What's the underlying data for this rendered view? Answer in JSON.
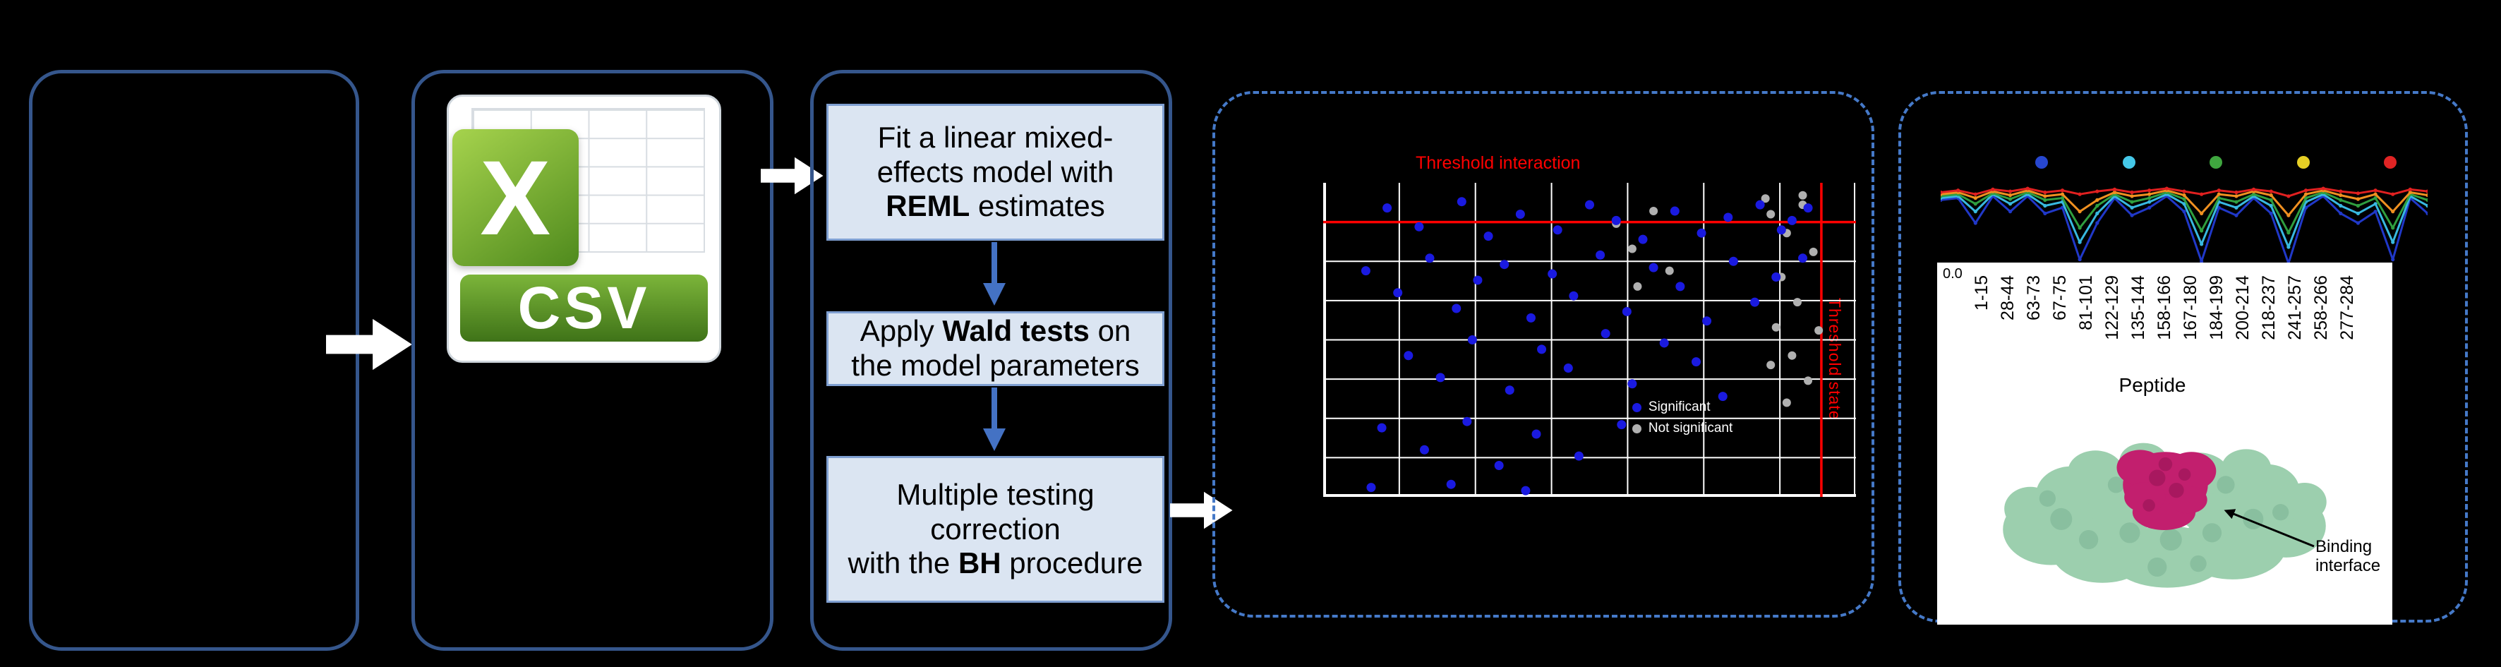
{
  "colors": {
    "background": "#000000",
    "panel_border": "#35568c",
    "dashed_border": "#4579c8",
    "arrow_white": "#ffffff",
    "flow_arrow_blue": "#4472c4",
    "flow_box_fill": "#dbe5f2"
  },
  "csv": {
    "banner": "CSV",
    "logo_letter": "X"
  },
  "flow": {
    "step1": {
      "l1": "Fit a linear mixed-",
      "l2": "effects model with",
      "l3_bold": "REML",
      "l3_rest": " estimates"
    },
    "step2": {
      "l1_pre": "Apply ",
      "l1_bold": "Wald tests",
      "l1_post": " on",
      "l2": "the model parameters"
    },
    "step3": {
      "l1": "Multiple testing",
      "l2": "correction",
      "l3_pre": "with the ",
      "l3_bold": "BH",
      "l3_post": " procedure"
    }
  },
  "scatter": {
    "title": "Threshold interaction",
    "side_label": "Threshold state",
    "threshold_color": "#ff0000",
    "threshold_h_pct": 12.5,
    "threshold_v_pct": 93.5,
    "grid": {
      "cols": 7,
      "rows": 8
    },
    "legend": [
      {
        "label": "Significant",
        "color": "#1a1ae0"
      },
      {
        "label": "Not significant",
        "color": "#b0b0b0"
      }
    ],
    "points": {
      "blue_color": "#1a1ae0",
      "gray_color": "#b0b0b0",
      "blue": [
        [
          12,
          8
        ],
        [
          18,
          14
        ],
        [
          26,
          6
        ],
        [
          31,
          17
        ],
        [
          37,
          10
        ],
        [
          44,
          15
        ],
        [
          50,
          7
        ],
        [
          55,
          12
        ],
        [
          60,
          18
        ],
        [
          66,
          9
        ],
        [
          71,
          16
        ],
        [
          76,
          11
        ],
        [
          82,
          7
        ],
        [
          86,
          15
        ],
        [
          8,
          28
        ],
        [
          14,
          35
        ],
        [
          20,
          24
        ],
        [
          25,
          40
        ],
        [
          29,
          31
        ],
        [
          34,
          26
        ],
        [
          39,
          43
        ],
        [
          43,
          29
        ],
        [
          47,
          36
        ],
        [
          52,
          23
        ],
        [
          57,
          41
        ],
        [
          62,
          27
        ],
        [
          67,
          33
        ],
        [
          72,
          44
        ],
        [
          77,
          25
        ],
        [
          81,
          38
        ],
        [
          85,
          30
        ],
        [
          16,
          55
        ],
        [
          22,
          62
        ],
        [
          28,
          50
        ],
        [
          35,
          66
        ],
        [
          41,
          53
        ],
        [
          46,
          59
        ],
        [
          53,
          48
        ],
        [
          58,
          64
        ],
        [
          64,
          51
        ],
        [
          70,
          57
        ],
        [
          75,
          68
        ],
        [
          11,
          78
        ],
        [
          19,
          85
        ],
        [
          27,
          76
        ],
        [
          33,
          90
        ],
        [
          40,
          80
        ],
        [
          48,
          87
        ],
        [
          56,
          77
        ],
        [
          9,
          97
        ],
        [
          24,
          96
        ],
        [
          38,
          98
        ],
        [
          88,
          12
        ],
        [
          90,
          24
        ],
        [
          91,
          8
        ]
      ],
      "gray": [
        [
          84,
          10
        ],
        [
          87,
          16
        ],
        [
          90,
          7
        ],
        [
          86,
          30
        ],
        [
          89,
          38
        ],
        [
          92,
          22
        ],
        [
          85,
          46
        ],
        [
          88,
          55
        ],
        [
          91,
          63
        ],
        [
          87,
          70
        ],
        [
          93,
          47
        ],
        [
          84,
          58
        ],
        [
          55,
          13
        ],
        [
          58,
          21
        ],
        [
          62,
          9
        ],
        [
          65,
          28
        ],
        [
          59,
          33
        ],
        [
          83,
          5
        ],
        [
          90,
          4
        ]
      ]
    }
  },
  "uptake": {
    "legend_colors": [
      "#2747d0",
      "#45c8e8",
      "#3fa63f",
      "#e6cf25",
      "#e02424"
    ],
    "series": [
      {
        "color": "#2038c8",
        "values": [
          0.74,
          0.76,
          0.5,
          0.78,
          0.62,
          0.78,
          0.6,
          0.66,
          0.12,
          0.5,
          0.76,
          0.58,
          0.66,
          0.78,
          0.62,
          0.1,
          0.66,
          0.58,
          0.76,
          0.6,
          0.08,
          0.66,
          0.78,
          0.6,
          0.5,
          0.62,
          0.12,
          0.76,
          0.6
        ]
      },
      {
        "color": "#38b8e0",
        "values": [
          0.76,
          0.78,
          0.62,
          0.8,
          0.7,
          0.8,
          0.68,
          0.72,
          0.3,
          0.6,
          0.78,
          0.66,
          0.72,
          0.8,
          0.7,
          0.28,
          0.72,
          0.66,
          0.78,
          0.68,
          0.25,
          0.72,
          0.8,
          0.68,
          0.6,
          0.7,
          0.3,
          0.78,
          0.68
        ]
      },
      {
        "color": "#2f9e3f",
        "values": [
          0.78,
          0.8,
          0.7,
          0.81,
          0.75,
          0.82,
          0.74,
          0.76,
          0.45,
          0.68,
          0.8,
          0.72,
          0.76,
          0.82,
          0.75,
          0.42,
          0.76,
          0.72,
          0.8,
          0.74,
          0.4,
          0.76,
          0.82,
          0.74,
          0.68,
          0.76,
          0.45,
          0.8,
          0.74
        ]
      },
      {
        "color": "#f09020",
        "values": [
          0.8,
          0.82,
          0.76,
          0.83,
          0.79,
          0.84,
          0.78,
          0.8,
          0.62,
          0.74,
          0.82,
          0.78,
          0.8,
          0.84,
          0.79,
          0.6,
          0.8,
          0.78,
          0.83,
          0.79,
          0.58,
          0.8,
          0.84,
          0.79,
          0.75,
          0.8,
          0.62,
          0.82,
          0.79
        ]
      },
      {
        "color": "#e02020",
        "values": [
          0.82,
          0.84,
          0.8,
          0.85,
          0.83,
          0.86,
          0.82,
          0.84,
          0.8,
          0.83,
          0.85,
          0.82,
          0.84,
          0.86,
          0.83,
          0.8,
          0.84,
          0.82,
          0.85,
          0.83,
          0.78,
          0.84,
          0.86,
          0.83,
          0.81,
          0.84,
          0.8,
          0.85,
          0.83
        ]
      }
    ],
    "ytick": "0.0",
    "xlabel": "Peptide",
    "peptides": [
      "1-15",
      "28-44",
      "63-73",
      "67-75",
      "81-101",
      "122-129",
      "135-144",
      "158-166",
      "167-180",
      "184-199",
      "200-214",
      "218-237",
      "241-257",
      "258-266",
      "277-284"
    ]
  },
  "structure": {
    "label_line1": "Binding",
    "label_line2": "interface",
    "surface_color": "#9ccfae",
    "interface_color": "#c21f6e"
  }
}
